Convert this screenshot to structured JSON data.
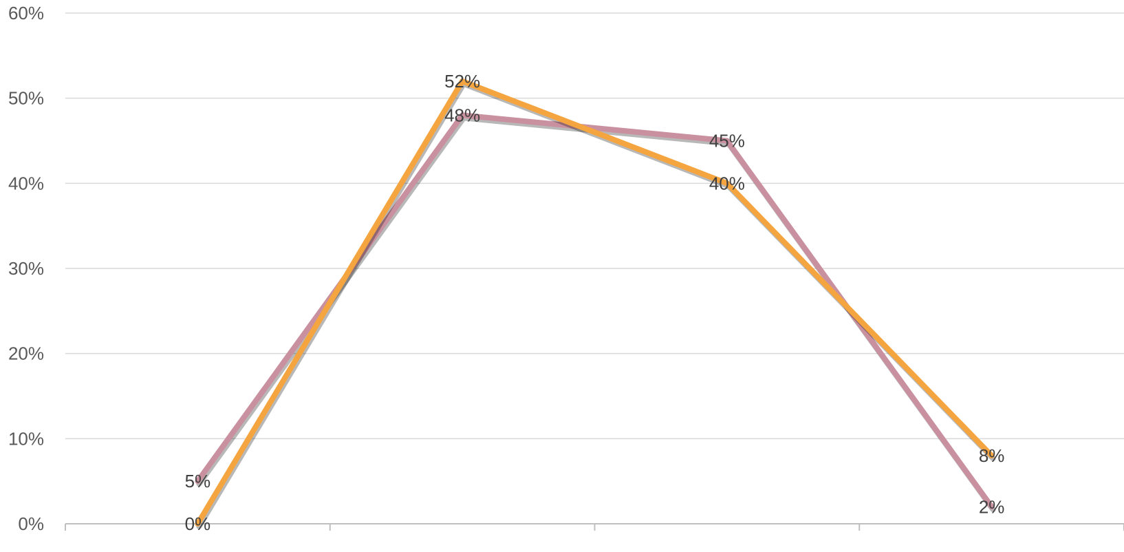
{
  "chart_data": {
    "type": "line",
    "title": "",
    "xlabel": "",
    "ylabel": "",
    "categories": [
      "",
      "",
      "",
      ""
    ],
    "ylim": [
      0,
      0.6
    ],
    "yticks": [
      "0%",
      "10%",
      "20%",
      "30%",
      "40%",
      "50%",
      "60%"
    ],
    "grid": true,
    "legend": "none",
    "series": [
      {
        "color": "#C9909F",
        "values": [
          0.05,
          0.48,
          0.45,
          0.02
        ],
        "labels": [
          "5%",
          "48%",
          "45%",
          "2%"
        ]
      },
      {
        "color": "#F4A540",
        "values": [
          0.0,
          0.52,
          0.4,
          0.08
        ],
        "labels": [
          "0%",
          "52%",
          "40%",
          "8%"
        ]
      }
    ]
  }
}
